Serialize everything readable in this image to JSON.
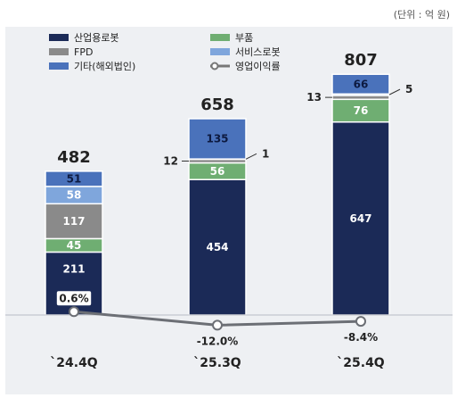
{
  "unit_note": "(단위 : 억 원)",
  "chart_data": {
    "type": "bar",
    "stacked": true,
    "categories": [
      "`24.4Q",
      "`25.3Q",
      "`25.4Q"
    ],
    "series": [
      {
        "name": "산업용로봇",
        "color": "#1b2a57",
        "values": [
          211,
          454,
          647
        ]
      },
      {
        "name": "부품",
        "color": "#6fae72",
        "values": [
          45,
          56,
          76
        ]
      },
      {
        "name": "FPD",
        "color": "#8a8a8a",
        "values": [
          117,
          12,
          13
        ]
      },
      {
        "name": "서비스로봇",
        "color": "#7fa6dc",
        "values": [
          58,
          1,
          5
        ]
      },
      {
        "name": "기타(해외법인)",
        "color": "#4a72bb",
        "values": [
          51,
          135,
          66
        ]
      }
    ],
    "totals": [
      482,
      658,
      807
    ],
    "line_series": {
      "name": "영업이익률",
      "values": [
        0.6,
        -12.0,
        -8.4
      ],
      "labels": [
        "0.6%",
        "-12.0%",
        "-8.4%"
      ]
    },
    "legend_placement": "top-left",
    "grid": false
  }
}
